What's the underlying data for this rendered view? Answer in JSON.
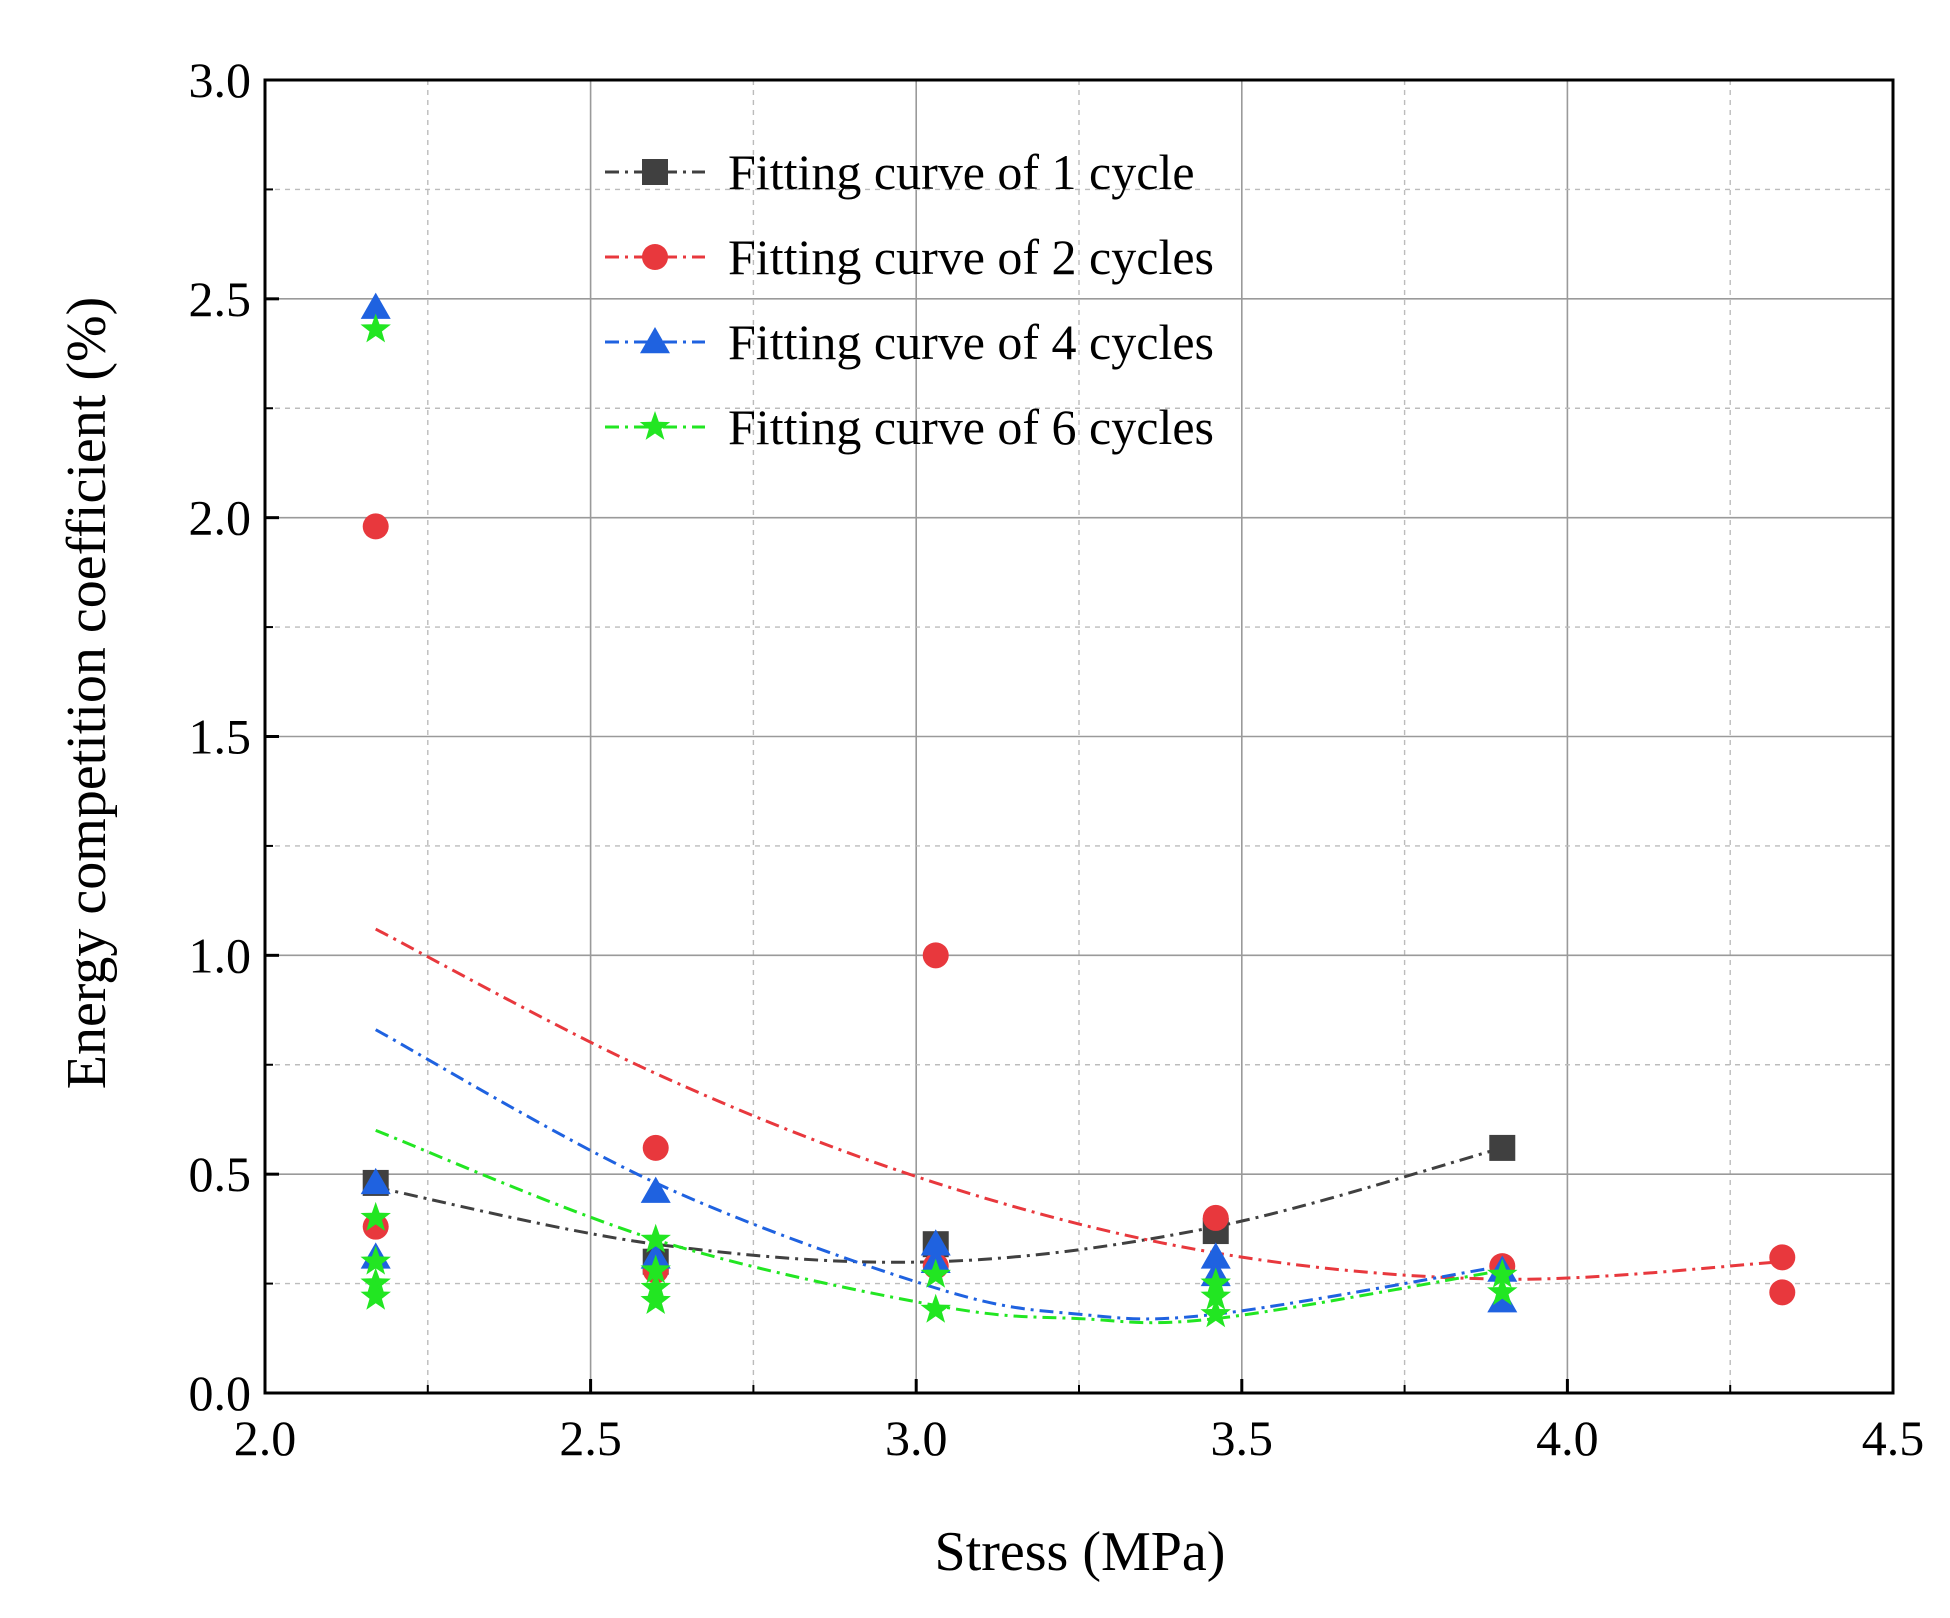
{
  "chart_data": {
    "type": "scatter",
    "title": "",
    "xlabel": "Stress (MPa)",
    "ylabel": "Energy competition coefficient (%)",
    "xlim": [
      2.0,
      4.5
    ],
    "ylim": [
      0.0,
      3.0
    ],
    "x_ticks": [
      "2.0",
      "2.5",
      "3.0",
      "3.5",
      "4.0",
      "4.5"
    ],
    "y_ticks": [
      "0.0",
      "0.5",
      "1.0",
      "1.5",
      "2.0",
      "2.5",
      "3.0"
    ],
    "grid": true,
    "legend_position": "top",
    "series": [
      {
        "name": "Fitting curve of 1 cycle",
        "marker": "square",
        "color": "#404040",
        "points": [
          [
            2.17,
            0.48
          ],
          [
            2.6,
            0.3
          ],
          [
            3.03,
            0.34
          ],
          [
            3.46,
            0.37
          ],
          [
            3.9,
            0.56
          ]
        ],
        "fit": [
          [
            2.17,
            0.47
          ],
          [
            2.6,
            0.34
          ],
          [
            3.03,
            0.3
          ],
          [
            3.46,
            0.38
          ],
          [
            3.9,
            0.56
          ]
        ]
      },
      {
        "name": "Fitting curve of 2 cycles",
        "marker": "circle",
        "color": "#e8383d",
        "points": [
          [
            2.17,
            1.98
          ],
          [
            2.17,
            0.38
          ],
          [
            2.6,
            0.56
          ],
          [
            2.6,
            0.28
          ],
          [
            3.03,
            1.0
          ],
          [
            3.03,
            0.29
          ],
          [
            3.46,
            0.4
          ],
          [
            3.9,
            0.29
          ],
          [
            4.33,
            0.31
          ],
          [
            4.33,
            0.23
          ]
        ],
        "fit": [
          [
            2.17,
            1.06
          ],
          [
            2.6,
            0.73
          ],
          [
            3.03,
            0.48
          ],
          [
            3.46,
            0.32
          ],
          [
            3.9,
            0.26
          ],
          [
            4.33,
            0.3
          ]
        ]
      },
      {
        "name": "Fitting curve of 4 cycles",
        "marker": "triangle",
        "color": "#1f62e0",
        "points": [
          [
            2.17,
            2.48
          ],
          [
            2.17,
            0.48
          ],
          [
            2.17,
            0.31
          ],
          [
            2.6,
            0.46
          ],
          [
            2.6,
            0.31
          ],
          [
            3.03,
            0.34
          ],
          [
            3.03,
            0.3
          ],
          [
            3.46,
            0.31
          ],
          [
            3.46,
            0.27
          ],
          [
            3.9,
            0.28
          ],
          [
            3.9,
            0.21
          ]
        ],
        "fit": [
          [
            2.17,
            0.83
          ],
          [
            2.6,
            0.48
          ],
          [
            3.03,
            0.24
          ],
          [
            3.25,
            0.18
          ],
          [
            3.46,
            0.18
          ],
          [
            3.9,
            0.29
          ]
        ]
      },
      {
        "name": "Fitting curve of 6 cycles",
        "marker": "star",
        "color": "#22e622",
        "points": [
          [
            2.17,
            2.43
          ],
          [
            2.17,
            0.4
          ],
          [
            2.17,
            0.3
          ],
          [
            2.17,
            0.25
          ],
          [
            2.17,
            0.22
          ],
          [
            2.6,
            0.35
          ],
          [
            2.6,
            0.28
          ],
          [
            2.6,
            0.24
          ],
          [
            2.6,
            0.21
          ],
          [
            3.03,
            0.27
          ],
          [
            3.03,
            0.19
          ],
          [
            3.46,
            0.25
          ],
          [
            3.46,
            0.22
          ],
          [
            3.46,
            0.18
          ],
          [
            3.9,
            0.27
          ],
          [
            3.9,
            0.23
          ]
        ],
        "fit": [
          [
            2.17,
            0.6
          ],
          [
            2.6,
            0.35
          ],
          [
            3.03,
            0.2
          ],
          [
            3.25,
            0.17
          ],
          [
            3.46,
            0.17
          ],
          [
            3.9,
            0.28
          ]
        ]
      }
    ]
  }
}
